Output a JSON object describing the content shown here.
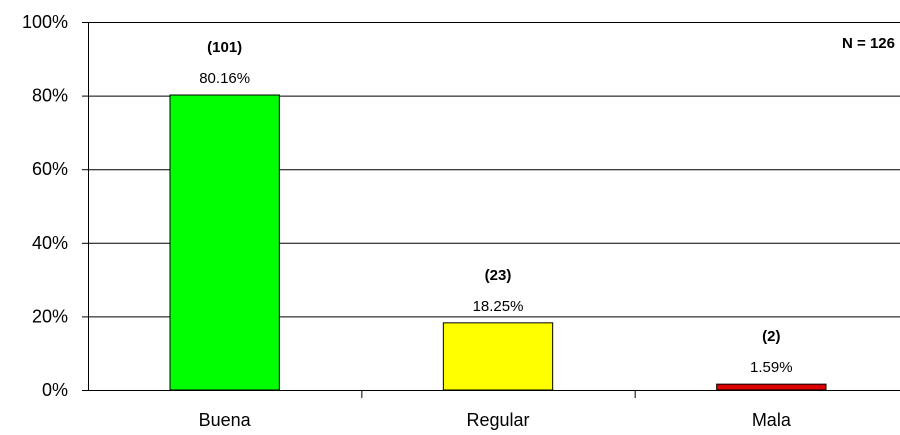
{
  "chart_data": {
    "type": "bar",
    "categories": [
      "Buena",
      "Regular",
      "Mala"
    ],
    "values": [
      80.16,
      18.25,
      1.59
    ],
    "counts": [
      101,
      23,
      2
    ],
    "value_labels": [
      "80.16%",
      "18.25%",
      "1.59%"
    ],
    "count_labels": [
      "(101)",
      "(23)",
      "(2)"
    ],
    "bar_colors": [
      "#00ff00",
      "#ffff00",
      "#dd0000"
    ],
    "annotation": "N = 126",
    "ylim": [
      0,
      100
    ],
    "yticks": [
      0,
      20,
      40,
      60,
      80,
      100
    ],
    "ytick_labels": [
      "0%",
      "20%",
      "40%",
      "60%",
      "80%",
      "100%"
    ],
    "grid": true,
    "legend": "none"
  }
}
